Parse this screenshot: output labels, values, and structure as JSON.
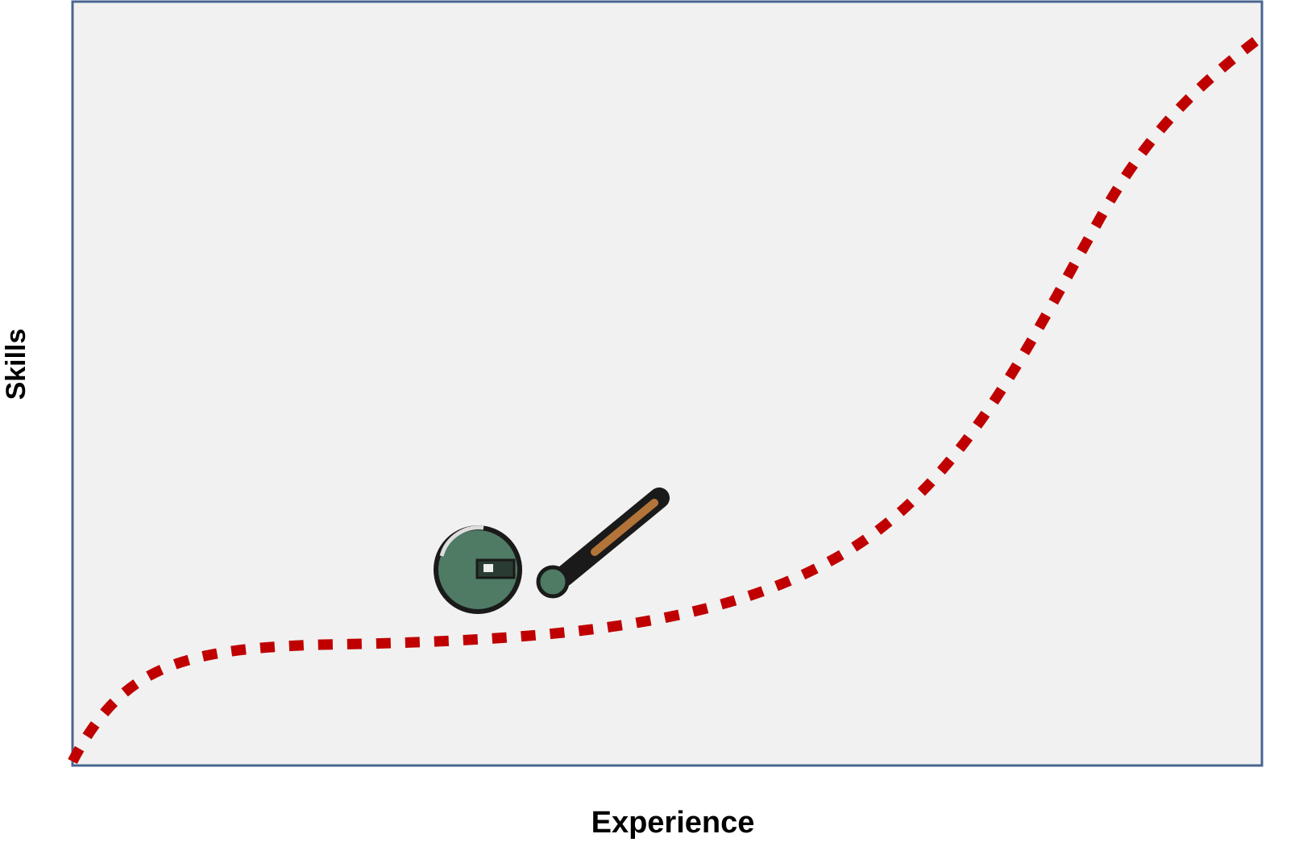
{
  "axes": {
    "y_label": "Skills",
    "x_label": "Experience"
  }
}
